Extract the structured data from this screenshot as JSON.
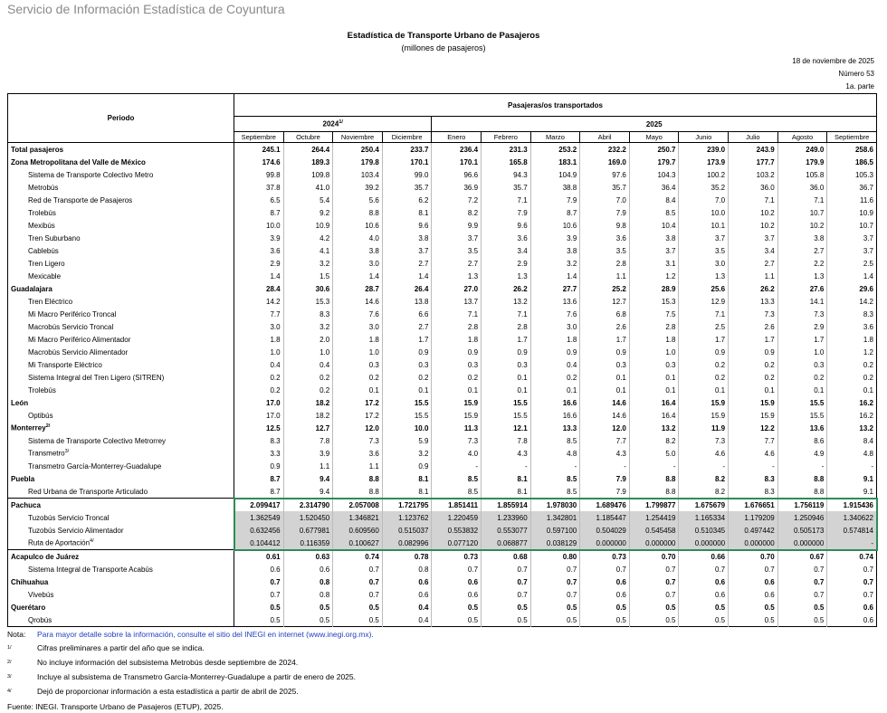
{
  "header": {
    "agency": "Servicio de Información Estadística de Coyuntura",
    "title": "Estadística de Transporte Urbano de Pasajeros",
    "subtitle": "(millones de pasajeros)",
    "date": "18 de noviembre de 2025",
    "number": "Número 53",
    "part": "1a. parte"
  },
  "table": {
    "period_header": "Periodo",
    "group_header": "Pasajeras/os transportados",
    "years": [
      {
        "label": "2024",
        "sup": "1/",
        "span": 4
      },
      {
        "label": "2025",
        "span": 9
      }
    ],
    "months": [
      "Septiembre",
      "Octubre",
      "Noviembre",
      "Diciembre",
      "Enero",
      "Febrero",
      "Marzo",
      "Abril",
      "Mayo",
      "Junio",
      "Julio",
      "Agosto",
      "Septiembre"
    ],
    "rows": [
      {
        "label": "Total pasajeros",
        "bold": true,
        "values": [
          "245.1",
          "264.4",
          "250.4",
          "233.7",
          "236.4",
          "231.3",
          "253.2",
          "232.2",
          "250.7",
          "239.0",
          "243.9",
          "249.0",
          "258.6"
        ]
      },
      {
        "label": "Zona Metropolitana del Valle de México",
        "bold": true,
        "values": [
          "174.6",
          "189.3",
          "179.8",
          "170.1",
          "170.1",
          "165.8",
          "183.1",
          "169.0",
          "179.7",
          "173.9",
          "177.7",
          "179.9",
          "186.5"
        ]
      },
      {
        "label": "Sistema de Transporte Colectivo Metro",
        "values": [
          "99.8",
          "109.8",
          "103.4",
          "99.0",
          "96.6",
          "94.3",
          "104.9",
          "97.6",
          "104.3",
          "100.2",
          "103.2",
          "105.8",
          "105.3"
        ]
      },
      {
        "label": "Metrobús",
        "values": [
          "37.8",
          "41.0",
          "39.2",
          "35.7",
          "36.9",
          "35.7",
          "38.8",
          "35.7",
          "36.4",
          "35.2",
          "36.0",
          "36.0",
          "36.7"
        ]
      },
      {
        "label": "Red de Transporte de Pasajeros",
        "values": [
          "6.5",
          "5.4",
          "5.6",
          "6.2",
          "7.2",
          "7.1",
          "7.9",
          "7.0",
          "8.4",
          "7.0",
          "7.1",
          "7.1",
          "11.6"
        ]
      },
      {
        "label": "Trolebús",
        "values": [
          "8.7",
          "9.2",
          "8.8",
          "8.1",
          "8.2",
          "7.9",
          "8.7",
          "7.9",
          "8.5",
          "10.0",
          "10.2",
          "10.7",
          "10.9"
        ]
      },
      {
        "label": "Mexibús",
        "values": [
          "10.0",
          "10.9",
          "10.6",
          "9.6",
          "9.9",
          "9.6",
          "10.6",
          "9.8",
          "10.4",
          "10.1",
          "10.2",
          "10.2",
          "10.7"
        ]
      },
      {
        "label": "Tren Suburbano",
        "values": [
          "3.9",
          "4.2",
          "4.0",
          "3.8",
          "3.7",
          "3.6",
          "3.9",
          "3.6",
          "3.8",
          "3.7",
          "3.7",
          "3.8",
          "3.7"
        ]
      },
      {
        "label": "Cablebús",
        "values": [
          "3.6",
          "4.1",
          "3.8",
          "3.7",
          "3.5",
          "3.4",
          "3.8",
          "3.5",
          "3.7",
          "3.5",
          "3.4",
          "2.7",
          "3.7"
        ]
      },
      {
        "label": "Tren Ligero",
        "values": [
          "2.9",
          "3.2",
          "3.0",
          "2.7",
          "2.7",
          "2.9",
          "3.2",
          "2.8",
          "3.1",
          "3.0",
          "2.7",
          "2.2",
          "2.5"
        ]
      },
      {
        "label": "Mexicable",
        "values": [
          "1.4",
          "1.5",
          "1.4",
          "1.4",
          "1.3",
          "1.3",
          "1.4",
          "1.1",
          "1.2",
          "1.3",
          "1.1",
          "1.3",
          "1.4"
        ]
      },
      {
        "label": "Guadalajara",
        "bold": true,
        "values": [
          "28.4",
          "30.6",
          "28.7",
          "26.4",
          "27.0",
          "26.2",
          "27.7",
          "25.2",
          "28.9",
          "25.6",
          "26.2",
          "27.6",
          "29.6"
        ]
      },
      {
        "label": "Tren Eléctrico",
        "values": [
          "14.2",
          "15.3",
          "14.6",
          "13.8",
          "13.7",
          "13.2",
          "13.6",
          "12.7",
          "15.3",
          "12.9",
          "13.3",
          "14.1",
          "14.2"
        ]
      },
      {
        "label": "Mi Macro Periférico Troncal",
        "values": [
          "7.7",
          "8.3",
          "7.6",
          "6.6",
          "7.1",
          "7.1",
          "7.6",
          "6.8",
          "7.5",
          "7.1",
          "7.3",
          "7.3",
          "8.3"
        ]
      },
      {
        "label": "Macrobús Servicio Troncal",
        "values": [
          "3.0",
          "3.2",
          "3.0",
          "2.7",
          "2.8",
          "2.8",
          "3.0",
          "2.6",
          "2.8",
          "2.5",
          "2.6",
          "2.9",
          "3.6"
        ]
      },
      {
        "label": "Mi Macro Periférico Alimentador",
        "values": [
          "1.8",
          "2.0",
          "1.8",
          "1.7",
          "1.8",
          "1.7",
          "1.8",
          "1.7",
          "1.8",
          "1.7",
          "1.7",
          "1.7",
          "1.8"
        ]
      },
      {
        "label": "Macrobús Servicio Alimentador",
        "values": [
          "1.0",
          "1.0",
          "1.0",
          "0.9",
          "0.9",
          "0.9",
          "0.9",
          "0.9",
          "1.0",
          "0.9",
          "0.9",
          "1.0",
          "1.2"
        ]
      },
      {
        "label": "Mi Transporte Eléctrico",
        "values": [
          "0.4",
          "0.4",
          "0.3",
          "0.3",
          "0.3",
          "0.3",
          "0.4",
          "0.3",
          "0.3",
          "0.2",
          "0.2",
          "0.3",
          "0.2"
        ]
      },
      {
        "label": "Sistema Integral del Tren Ligero (SITREN)",
        "values": [
          "0.2",
          "0.2",
          "0.2",
          "0.2",
          "0.2",
          "0.1",
          "0.2",
          "0.1",
          "0.1",
          "0.2",
          "0.2",
          "0.2",
          "0.2"
        ]
      },
      {
        "label": "Trolebús",
        "values": [
          "0.2",
          "0.2",
          "0.1",
          "0.1",
          "0.1",
          "0.1",
          "0.1",
          "0.1",
          "0.1",
          "0.1",
          "0.1",
          "0.1",
          "0.1"
        ]
      },
      {
        "label": "León",
        "bold": true,
        "values": [
          "17.0",
          "18.2",
          "17.2",
          "15.5",
          "15.9",
          "15.5",
          "16.6",
          "14.6",
          "16.4",
          "15.9",
          "15.9",
          "15.5",
          "16.2"
        ]
      },
      {
        "label": "Optibús",
        "values": [
          "17.0",
          "18.2",
          "17.2",
          "15.5",
          "15.9",
          "15.5",
          "16.6",
          "14.6",
          "16.4",
          "15.9",
          "15.9",
          "15.5",
          "16.2"
        ]
      },
      {
        "label": "Monterrey",
        "sup": "2/",
        "bold": true,
        "values": [
          "12.5",
          "12.7",
          "12.0",
          "10.0",
          "11.3",
          "12.1",
          "13.3",
          "12.0",
          "13.2",
          "11.9",
          "12.2",
          "13.6",
          "13.2"
        ]
      },
      {
        "label": "Sistema de Transporte Colectivo Metrorrey",
        "values": [
          "8.3",
          "7.8",
          "7.3",
          "5.9",
          "7.3",
          "7.8",
          "8.5",
          "7.7",
          "8.2",
          "7.3",
          "7.7",
          "8.6",
          "8.4"
        ]
      },
      {
        "label": "Transmetro",
        "sup": "3/",
        "values": [
          "3.3",
          "3.9",
          "3.6",
          "3.2",
          "4.0",
          "4.3",
          "4.8",
          "4.3",
          "5.0",
          "4.6",
          "4.6",
          "4.9",
          "4.8"
        ]
      },
      {
        "label": "Transmetro García-Monterrey-Guadalupe",
        "values": [
          "0.9",
          "1.1",
          "1.1",
          "0.9",
          "-",
          "-",
          "-",
          "-",
          "-",
          "-",
          "-",
          "-",
          "-"
        ]
      },
      {
        "label": "Puebla",
        "bold": true,
        "values": [
          "8.7",
          "9.4",
          "8.8",
          "8.1",
          "8.5",
          "8.1",
          "8.5",
          "7.9",
          "8.8",
          "8.2",
          "8.3",
          "8.8",
          "9.1"
        ]
      },
      {
        "label": "Red Urbana de Transporte Articulado",
        "values": [
          "8.7",
          "9.4",
          "8.8",
          "8.1",
          "8.5",
          "8.1",
          "8.5",
          "7.9",
          "8.8",
          "8.2",
          "8.3",
          "8.8",
          "9.1"
        ]
      },
      {
        "label": "Pachuca",
        "bold": true,
        "selected": true,
        "values": [
          "2.099417",
          "2.314790",
          "2.057008",
          "1.721795",
          "1.851411",
          "1.855914",
          "1.978030",
          "1.689476",
          "1.799877",
          "1.675679",
          "1.676651",
          "1.756119",
          "1.915436"
        ]
      },
      {
        "label": "Tuzobús Servicio Troncal",
        "selected": true,
        "values": [
          "1.362549",
          "1.520450",
          "1.346821",
          "1.123762",
          "1.220459",
          "1.233960",
          "1.342801",
          "1.185447",
          "1.254419",
          "1.165334",
          "1.179209",
          "1.250946",
          "1.340622"
        ]
      },
      {
        "label": "Tuzobús Servicio Alimentador",
        "selected": true,
        "values": [
          "0.632456",
          "0.677981",
          "0.609560",
          "0.515037",
          "0.553832",
          "0.553077",
          "0.597100",
          "0.504029",
          "0.545458",
          "0.510345",
          "0.497442",
          "0.505173",
          "0.574814"
        ]
      },
      {
        "label": "Ruta de Aportación",
        "sup": "4/",
        "selected": true,
        "values": [
          "0.104412",
          "0.116359",
          "0.100627",
          "0.082996",
          "0.077120",
          "0.068877",
          "0.038129",
          "0.000000",
          "0.000000",
          "0.000000",
          "0.000000",
          "0.000000",
          "-"
        ]
      },
      {
        "label": "Acapulco de Juárez",
        "bold": true,
        "values": [
          "0.61",
          "0.63",
          "0.74",
          "0.78",
          "0.73",
          "0.68",
          "0.80",
          "0.73",
          "0.70",
          "0.66",
          "0.70",
          "0.67",
          "0.74"
        ]
      },
      {
        "label": "Sistema Integral de Transporte Acabús",
        "values": [
          "0.6",
          "0.6",
          "0.7",
          "0.8",
          "0.7",
          "0.7",
          "0.7",
          "0.7",
          "0.7",
          "0.7",
          "0.7",
          "0.7",
          "0.7"
        ]
      },
      {
        "label": "Chihuahua",
        "bold": true,
        "values": [
          "0.7",
          "0.8",
          "0.7",
          "0.6",
          "0.6",
          "0.7",
          "0.7",
          "0.6",
          "0.7",
          "0.6",
          "0.6",
          "0.7",
          "0.7"
        ]
      },
      {
        "label": "Vivebús",
        "values": [
          "0.7",
          "0.8",
          "0.7",
          "0.6",
          "0.6",
          "0.7",
          "0.7",
          "0.6",
          "0.7",
          "0.6",
          "0.6",
          "0.7",
          "0.7"
        ]
      },
      {
        "label": "Querétaro",
        "bold": true,
        "values": [
          "0.5",
          "0.5",
          "0.5",
          "0.4",
          "0.5",
          "0.5",
          "0.5",
          "0.5",
          "0.5",
          "0.5",
          "0.5",
          "0.5",
          "0.6"
        ]
      },
      {
        "label": "Qrobús",
        "values": [
          "0.5",
          "0.5",
          "0.5",
          "0.4",
          "0.5",
          "0.5",
          "0.5",
          "0.5",
          "0.5",
          "0.5",
          "0.5",
          "0.5",
          "0.6"
        ]
      }
    ]
  },
  "notes": {
    "note_label": "Nota:",
    "note_text": "Para mayor detalle sobre la información, consulte el sitio del INEGI en internet (www.inegi.org.mx).",
    "footnotes": [
      {
        "mark": "1/",
        "text": "Cifras preliminares a partir del año que se indica."
      },
      {
        "mark": "2/",
        "text": "No incluye información del subsistema Metrobús desde septiembre de 2024."
      },
      {
        "mark": "3/",
        "text": "Incluye al subsistema de Transmetro García-Monterrey-Guadalupe a partir de enero de 2025."
      },
      {
        "mark": "4/",
        "text": "Dejó de proporcionar información a esta estadística a partir de abril de 2025."
      }
    ],
    "source": "Fuente: INEGI. Transporte Urbano de Pasajeros (ETUP), 2025."
  }
}
